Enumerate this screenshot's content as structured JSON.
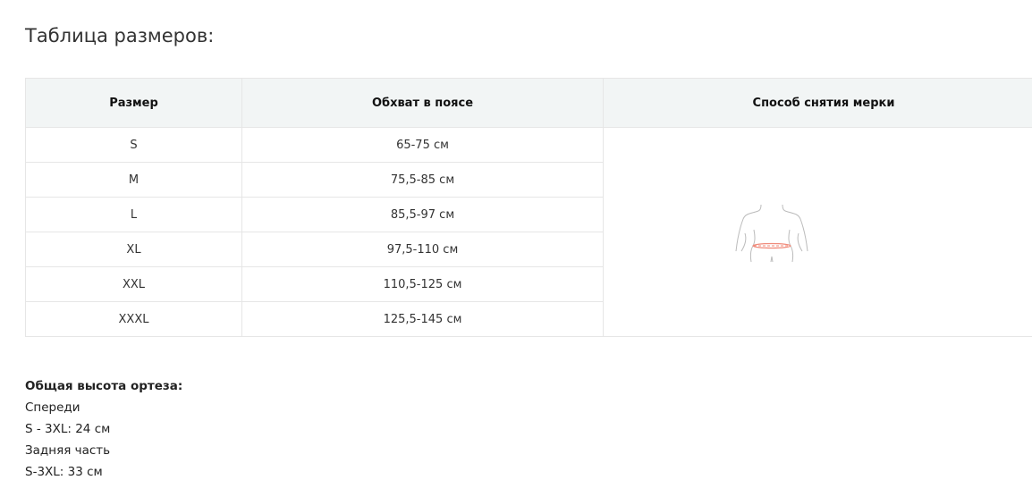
{
  "title": "Таблица размеров:",
  "table": {
    "headers": [
      "Размер",
      "Обхват в поясе",
      "Способ снятия мерки"
    ],
    "rows": [
      {
        "size": "S",
        "waist": "65-75 см"
      },
      {
        "size": "M",
        "waist": "75,5-85 см"
      },
      {
        "size": "L",
        "waist": "85,5-97 см"
      },
      {
        "size": "XL",
        "waist": "97,5-110 см"
      },
      {
        "size": "XXL",
        "waist": "110,5-125 см"
      },
      {
        "size": "XXXL",
        "waist": "125,5-145 см"
      }
    ],
    "illustration": "waist-measurement-figure"
  },
  "info": {
    "heading": "Общая высота ортеза:",
    "lines": [
      "Спереди",
      "S - 3XL: 24 см",
      "Задняя часть",
      "S-3XL: 33 см"
    ]
  },
  "colors": {
    "header_bg": "#f2f5f5",
    "measure_line": "#f08a7a"
  }
}
